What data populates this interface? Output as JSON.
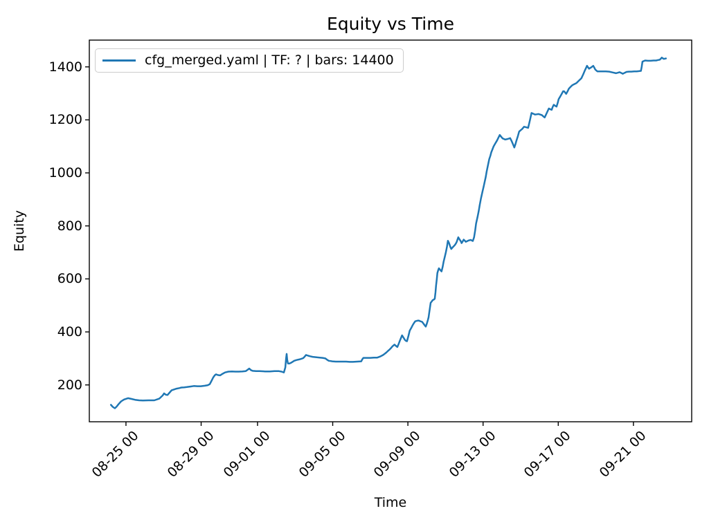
{
  "figure": {
    "title": "Equity vs Time",
    "xlabel": "Time",
    "ylabel": "Equity",
    "legend": {
      "label": "cfg_merged.yaml | TF: ? | bars: 14400",
      "line_color": "#1f77b4"
    }
  },
  "chart_data": {
    "type": "line",
    "title": "Equity vs Time",
    "xlabel": "Time",
    "ylabel": "Equity",
    "grid": false,
    "legend_position": "upper left",
    "x_unit": "fractional days, 0 = 08-23 00:00",
    "xlim": [
      0.05,
      32.1
    ],
    "ylim": [
      61,
      1501
    ],
    "x_ticks": [
      {
        "t": 2,
        "label": "08-25 00"
      },
      {
        "t": 6,
        "label": "08-29 00"
      },
      {
        "t": 9,
        "label": "09-01 00"
      },
      {
        "t": 13,
        "label": "09-05 00"
      },
      {
        "t": 17,
        "label": "09-09 00"
      },
      {
        "t": 21,
        "label": "09-13 00"
      },
      {
        "t": 25,
        "label": "09-17 00"
      },
      {
        "t": 29,
        "label": "09-21 00"
      }
    ],
    "y_ticks": [
      200,
      400,
      600,
      800,
      1000,
      1200,
      1400
    ],
    "series": [
      {
        "name": "cfg_merged.yaml | TF: ? | bars: 14400",
        "color": "#1f77b4",
        "points": [
          [
            1.2,
            125
          ],
          [
            1.3,
            117
          ],
          [
            1.41,
            112
          ],
          [
            1.5,
            118
          ],
          [
            1.6,
            127
          ],
          [
            1.74,
            138
          ],
          [
            1.9,
            145
          ],
          [
            2.11,
            150
          ],
          [
            2.3,
            147
          ],
          [
            2.48,
            144
          ],
          [
            2.7,
            142
          ],
          [
            2.9,
            141
          ],
          [
            3.2,
            142
          ],
          [
            3.51,
            142
          ],
          [
            3.77,
            148
          ],
          [
            3.95,
            160
          ],
          [
            4.03,
            168
          ],
          [
            4.12,
            163
          ],
          [
            4.21,
            162
          ],
          [
            4.33,
            172
          ],
          [
            4.43,
            180
          ],
          [
            4.57,
            183
          ],
          [
            4.69,
            186
          ],
          [
            4.84,
            188
          ],
          [
            4.95,
            190
          ],
          [
            5.1,
            191
          ],
          [
            5.24,
            192
          ],
          [
            5.45,
            194
          ],
          [
            5.61,
            196
          ],
          [
            5.8,
            195
          ],
          [
            5.98,
            195
          ],
          [
            6.2,
            197
          ],
          [
            6.35,
            199
          ],
          [
            6.46,
            203
          ],
          [
            6.55,
            215
          ],
          [
            6.64,
            228
          ],
          [
            6.72,
            236
          ],
          [
            6.79,
            240
          ],
          [
            6.9,
            237
          ],
          [
            7.01,
            236
          ],
          [
            7.14,
            242
          ],
          [
            7.27,
            247
          ],
          [
            7.45,
            250
          ],
          [
            7.64,
            251
          ],
          [
            7.82,
            250
          ],
          [
            8.0,
            250
          ],
          [
            8.19,
            251
          ],
          [
            8.37,
            252
          ],
          [
            8.47,
            257
          ],
          [
            8.56,
            262
          ],
          [
            8.65,
            256
          ],
          [
            8.74,
            253
          ],
          [
            8.92,
            252
          ],
          [
            9.11,
            252
          ],
          [
            9.4,
            251
          ],
          [
            9.66,
            251
          ],
          [
            9.9,
            252
          ],
          [
            10.14,
            252
          ],
          [
            10.28,
            250
          ],
          [
            10.4,
            247
          ],
          [
            10.48,
            266
          ],
          [
            10.52,
            300
          ],
          [
            10.55,
            317
          ],
          [
            10.58,
            295
          ],
          [
            10.62,
            281
          ],
          [
            10.7,
            281
          ],
          [
            10.77,
            283
          ],
          [
            10.86,
            287
          ],
          [
            10.95,
            291
          ],
          [
            11.08,
            294
          ],
          [
            11.21,
            296
          ],
          [
            11.32,
            298
          ],
          [
            11.43,
            301
          ],
          [
            11.51,
            307
          ],
          [
            11.58,
            313
          ],
          [
            11.7,
            310
          ],
          [
            11.8,
            308
          ],
          [
            11.93,
            306
          ],
          [
            12.06,
            305
          ],
          [
            12.19,
            304
          ],
          [
            12.31,
            303
          ],
          [
            12.46,
            302
          ],
          [
            12.61,
            300
          ],
          [
            12.7,
            295
          ],
          [
            12.79,
            291
          ],
          [
            12.89,
            290
          ],
          [
            12.98,
            289
          ],
          [
            13.16,
            288
          ],
          [
            13.34,
            288
          ],
          [
            13.53,
            288
          ],
          [
            13.71,
            288
          ],
          [
            13.9,
            287
          ],
          [
            14.08,
            287
          ],
          [
            14.3,
            288
          ],
          [
            14.52,
            289
          ],
          [
            14.57,
            296
          ],
          [
            14.63,
            302
          ],
          [
            14.82,
            302
          ],
          [
            15.0,
            302
          ],
          [
            15.19,
            303
          ],
          [
            15.37,
            303
          ],
          [
            15.52,
            307
          ],
          [
            15.66,
            312
          ],
          [
            15.76,
            317
          ],
          [
            15.85,
            322
          ],
          [
            15.94,
            328
          ],
          [
            16.03,
            334
          ],
          [
            16.11,
            340
          ],
          [
            16.18,
            346
          ],
          [
            16.29,
            352
          ],
          [
            16.37,
            347
          ],
          [
            16.44,
            343
          ],
          [
            16.51,
            355
          ],
          [
            16.58,
            368
          ],
          [
            16.64,
            378
          ],
          [
            16.69,
            387
          ],
          [
            16.77,
            378
          ],
          [
            16.84,
            370
          ],
          [
            16.9,
            366
          ],
          [
            16.95,
            365
          ],
          [
            17.03,
            385
          ],
          [
            17.1,
            405
          ],
          [
            17.18,
            415
          ],
          [
            17.25,
            425
          ],
          [
            17.32,
            433
          ],
          [
            17.39,
            440
          ],
          [
            17.49,
            442
          ],
          [
            17.58,
            443
          ],
          [
            17.67,
            440
          ],
          [
            17.76,
            438
          ],
          [
            17.86,
            428
          ],
          [
            17.95,
            420
          ],
          [
            18.0,
            430
          ],
          [
            18.06,
            444
          ],
          [
            18.1,
            455
          ],
          [
            18.13,
            470
          ],
          [
            18.17,
            490
          ],
          [
            18.21,
            510
          ],
          [
            18.27,
            515
          ],
          [
            18.32,
            520
          ],
          [
            18.38,
            522
          ],
          [
            18.43,
            525
          ],
          [
            18.47,
            550
          ],
          [
            18.5,
            575
          ],
          [
            18.54,
            600
          ],
          [
            18.57,
            622
          ],
          [
            18.61,
            632
          ],
          [
            18.65,
            640
          ],
          [
            18.72,
            634
          ],
          [
            18.79,
            628
          ],
          [
            18.85,
            645
          ],
          [
            18.9,
            665
          ],
          [
            18.96,
            682
          ],
          [
            19.02,
            700
          ],
          [
            19.08,
            722
          ],
          [
            19.13,
            744
          ],
          [
            19.19,
            735
          ],
          [
            19.24,
            725
          ],
          [
            19.27,
            719
          ],
          [
            19.31,
            713
          ],
          [
            19.37,
            718
          ],
          [
            19.42,
            722
          ],
          [
            19.46,
            725
          ],
          [
            19.49,
            727
          ],
          [
            19.55,
            733
          ],
          [
            19.6,
            740
          ],
          [
            19.64,
            749
          ],
          [
            19.68,
            757
          ],
          [
            19.73,
            751
          ],
          [
            19.79,
            745
          ],
          [
            19.83,
            740
          ],
          [
            19.86,
            735
          ],
          [
            19.92,
            742
          ],
          [
            19.97,
            748
          ],
          [
            20.03,
            744
          ],
          [
            20.08,
            740
          ],
          [
            20.15,
            742
          ],
          [
            20.23,
            745
          ],
          [
            20.29,
            746
          ],
          [
            20.34,
            747
          ],
          [
            20.4,
            745
          ],
          [
            20.45,
            743
          ],
          [
            20.49,
            750
          ],
          [
            20.52,
            757
          ],
          [
            20.58,
            783
          ],
          [
            20.63,
            809
          ],
          [
            20.67,
            822
          ],
          [
            20.71,
            835
          ],
          [
            20.77,
            856
          ],
          [
            20.82,
            878
          ],
          [
            20.89,
            904
          ],
          [
            20.97,
            930
          ],
          [
            21.03,
            948
          ],
          [
            21.08,
            965
          ],
          [
            21.14,
            984
          ],
          [
            21.19,
            1004
          ],
          [
            21.26,
            1028
          ],
          [
            21.33,
            1052
          ],
          [
            21.39,
            1065
          ],
          [
            21.44,
            1078
          ],
          [
            21.5,
            1089
          ],
          [
            21.56,
            1100
          ],
          [
            21.65,
            1111
          ],
          [
            21.74,
            1122
          ],
          [
            21.82,
            1133
          ],
          [
            21.89,
            1143
          ],
          [
            21.97,
            1136
          ],
          [
            22.04,
            1130
          ],
          [
            22.11,
            1128
          ],
          [
            22.18,
            1126
          ],
          [
            22.31,
            1128
          ],
          [
            22.44,
            1131
          ],
          [
            22.5,
            1123
          ],
          [
            22.55,
            1115
          ],
          [
            22.61,
            1105
          ],
          [
            22.66,
            1096
          ],
          [
            22.72,
            1108
          ],
          [
            22.77,
            1120
          ],
          [
            22.85,
            1138
          ],
          [
            22.92,
            1156
          ],
          [
            23.0,
            1161
          ],
          [
            23.07,
            1165
          ],
          [
            23.13,
            1170
          ],
          [
            23.18,
            1174
          ],
          [
            23.29,
            1172
          ],
          [
            23.4,
            1170
          ],
          [
            23.49,
            1198
          ],
          [
            23.58,
            1226
          ],
          [
            23.68,
            1223
          ],
          [
            23.77,
            1220
          ],
          [
            23.86,
            1221
          ],
          [
            23.95,
            1222
          ],
          [
            24.04,
            1220
          ],
          [
            24.13,
            1218
          ],
          [
            24.21,
            1213
          ],
          [
            24.28,
            1209
          ],
          [
            24.39,
            1226
          ],
          [
            24.5,
            1243
          ],
          [
            24.58,
            1240
          ],
          [
            24.65,
            1238
          ],
          [
            24.7,
            1248
          ],
          [
            24.76,
            1257
          ],
          [
            24.84,
            1253
          ],
          [
            24.91,
            1250
          ],
          [
            24.97,
            1264
          ],
          [
            25.02,
            1278
          ],
          [
            25.11,
            1289
          ],
          [
            25.2,
            1300
          ],
          [
            25.26,
            1308
          ],
          [
            25.31,
            1308
          ],
          [
            25.37,
            1303
          ],
          [
            25.42,
            1298
          ],
          [
            25.5,
            1308
          ],
          [
            25.57,
            1318
          ],
          [
            25.66,
            1325
          ],
          [
            25.75,
            1331
          ],
          [
            25.86,
            1335
          ],
          [
            25.97,
            1339
          ],
          [
            26.1,
            1348
          ],
          [
            26.23,
            1357
          ],
          [
            26.33,
            1372
          ],
          [
            26.42,
            1387
          ],
          [
            26.48,
            1396
          ],
          [
            26.53,
            1404
          ],
          [
            26.59,
            1398
          ],
          [
            26.64,
            1393
          ],
          [
            26.7,
            1396
          ],
          [
            26.75,
            1398
          ],
          [
            26.81,
            1401
          ],
          [
            26.86,
            1404
          ],
          [
            26.92,
            1397
          ],
          [
            26.97,
            1390
          ],
          [
            27.03,
            1386
          ],
          [
            27.08,
            1383
          ],
          [
            27.21,
            1383
          ],
          [
            27.34,
            1383
          ],
          [
            27.53,
            1383
          ],
          [
            27.71,
            1382
          ],
          [
            27.9,
            1379
          ],
          [
            28.07,
            1376
          ],
          [
            28.17,
            1378
          ],
          [
            28.26,
            1380
          ],
          [
            28.35,
            1377
          ],
          [
            28.44,
            1374
          ],
          [
            28.54,
            1378
          ],
          [
            28.63,
            1381
          ],
          [
            28.76,
            1382
          ],
          [
            28.89,
            1382
          ],
          [
            29.04,
            1383
          ],
          [
            29.18,
            1383
          ],
          [
            29.29,
            1384
          ],
          [
            29.4,
            1385
          ],
          [
            29.44,
            1400
          ],
          [
            29.48,
            1420
          ],
          [
            29.55,
            1422
          ],
          [
            29.62,
            1424
          ],
          [
            29.77,
            1423
          ],
          [
            29.92,
            1423
          ],
          [
            30.07,
            1424
          ],
          [
            30.21,
            1424
          ],
          [
            30.31,
            1426
          ],
          [
            30.4,
            1427
          ],
          [
            30.46,
            1431
          ],
          [
            30.51,
            1435
          ],
          [
            30.57,
            1432
          ],
          [
            30.62,
            1430
          ],
          [
            30.68,
            1431
          ],
          [
            30.73,
            1432
          ]
        ]
      }
    ]
  },
  "style": {
    "axis_color": "#000000",
    "background": "#ffffff",
    "legend_border": "#cccccc"
  }
}
